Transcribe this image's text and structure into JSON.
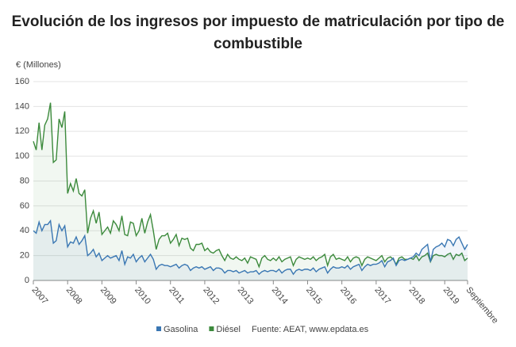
{
  "chart_data": {
    "type": "line",
    "title": "Evolución de los ingresos por impuesto de matriculación por tipo de combustible",
    "y_label": "€ (Millones)",
    "source": "Fuente: AEAT, www.epdata.es",
    "categories": [
      "2007",
      null,
      null,
      null,
      null,
      null,
      null,
      null,
      null,
      null,
      null,
      null,
      "2008",
      null,
      null,
      null,
      null,
      null,
      null,
      null,
      null,
      null,
      null,
      null,
      "2009",
      null,
      null,
      null,
      null,
      null,
      null,
      null,
      null,
      null,
      null,
      null,
      "2010",
      null,
      null,
      null,
      null,
      null,
      null,
      null,
      null,
      null,
      null,
      null,
      "2011",
      null,
      null,
      null,
      null,
      null,
      null,
      null,
      null,
      null,
      null,
      null,
      "2012",
      null,
      null,
      null,
      null,
      null,
      null,
      null,
      null,
      null,
      null,
      null,
      "2013",
      null,
      null,
      null,
      null,
      null,
      null,
      null,
      null,
      null,
      null,
      null,
      "2014",
      null,
      null,
      null,
      null,
      null,
      null,
      null,
      null,
      null,
      null,
      null,
      "2015",
      null,
      null,
      null,
      null,
      null,
      null,
      null,
      null,
      null,
      null,
      null,
      "2016",
      null,
      null,
      null,
      null,
      null,
      null,
      null,
      null,
      null,
      null,
      null,
      "2017",
      null,
      null,
      null,
      null,
      null,
      null,
      null,
      null,
      null,
      null,
      null,
      "2018",
      null,
      null,
      null,
      null,
      null,
      null,
      null,
      null,
      null,
      null,
      null,
      "2019",
      null,
      null,
      null,
      null,
      null,
      null,
      null,
      "Septiembre"
    ],
    "series": [
      {
        "name": "Gasolina",
        "color": "#3a77b3",
        "values": [
          40,
          38,
          47,
          40,
          45,
          45,
          48,
          30,
          32,
          45,
          40,
          44,
          27,
          31,
          30,
          35,
          29,
          32,
          36,
          20,
          22,
          25,
          19,
          22,
          16,
          18,
          20,
          18,
          19,
          20,
          16,
          24,
          13,
          19,
          18,
          21,
          15,
          18,
          20,
          15,
          18,
          21,
          17,
          9,
          12,
          13,
          12,
          12,
          11,
          12,
          13,
          10,
          12,
          13,
          12,
          8,
          10,
          11,
          10,
          11,
          9,
          10,
          11,
          8,
          10,
          10,
          9,
          6,
          8,
          8,
          7,
          8,
          6,
          7,
          8,
          6,
          7,
          7,
          8,
          5,
          7,
          8,
          7,
          8,
          8,
          7,
          9,
          6,
          8,
          9,
          9,
          5,
          8,
          9,
          8,
          9,
          9,
          8,
          10,
          7,
          9,
          10,
          11,
          6,
          9,
          11,
          10,
          10,
          11,
          10,
          12,
          9,
          11,
          12,
          13,
          8,
          11,
          13,
          12,
          13,
          13,
          14,
          16,
          11,
          15,
          16,
          18,
          12,
          16,
          17,
          16,
          17,
          18,
          19,
          22,
          20,
          25,
          27,
          29,
          15,
          25,
          27,
          28,
          30,
          27,
          33,
          32,
          28,
          33,
          35,
          30,
          25,
          29
        ]
      },
      {
        "name": "Diésel",
        "color": "#3c8a3c",
        "values": [
          112,
          105,
          127,
          105,
          125,
          130,
          143,
          95,
          97,
          130,
          123,
          136,
          70,
          78,
          72,
          82,
          70,
          68,
          73,
          38,
          50,
          56,
          46,
          55,
          37,
          40,
          43,
          38,
          48,
          45,
          40,
          52,
          37,
          36,
          47,
          46,
          36,
          40,
          50,
          38,
          47,
          53,
          40,
          25,
          33,
          36,
          36,
          38,
          30,
          33,
          37,
          28,
          34,
          33,
          34,
          26,
          24,
          29,
          29,
          30,
          24,
          26,
          23,
          22,
          24,
          25,
          20,
          16,
          21,
          18,
          17,
          19,
          17,
          16,
          18,
          14,
          19,
          18,
          17,
          11,
          18,
          20,
          17,
          16,
          18,
          16,
          19,
          15,
          17,
          18,
          19,
          12,
          17,
          19,
          18,
          17,
          18,
          17,
          19,
          16,
          18,
          19,
          21,
          12,
          19,
          21,
          17,
          18,
          17,
          16,
          19,
          15,
          18,
          19,
          18,
          12,
          17,
          19,
          18,
          17,
          16,
          18,
          20,
          15,
          18,
          19,
          17,
          13,
          18,
          19,
          17,
          17,
          18,
          17,
          20,
          16,
          19,
          20,
          22,
          15,
          20,
          21,
          20,
          20,
          19,
          21,
          22,
          17,
          21,
          20,
          22,
          16,
          18
        ]
      }
    ],
    "ylim": [
      0,
      160
    ],
    "yticks": [
      0,
      20,
      40,
      60,
      80,
      100,
      120,
      140,
      160
    ],
    "grid": true
  }
}
